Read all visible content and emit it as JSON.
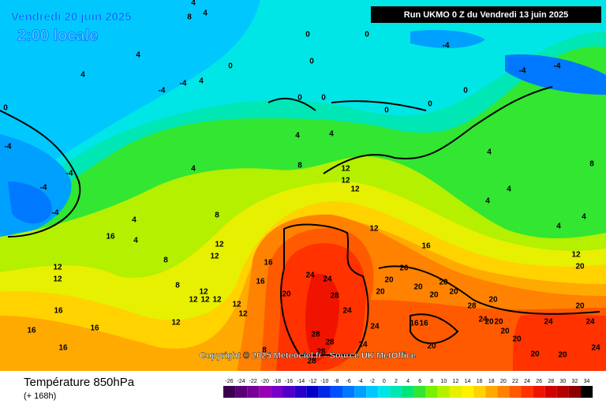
{
  "header": {
    "date": "Vendredi 20 juin 2025",
    "time": "2:00 locale",
    "run": "Run UKMO 0 Z du Vendredi 13 juin 2025"
  },
  "copyright": "Copyright © 2025 Meteociel.fr - Source UK MetOffice",
  "footer": {
    "title": "Température 850hPa",
    "subtitle": "(+ 168h)"
  },
  "legend": {
    "labels": [
      -26,
      -24,
      -22,
      -20,
      -18,
      -16,
      -14,
      -12,
      -10,
      -8,
      -6,
      -4,
      -2,
      0,
      2,
      4,
      6,
      8,
      10,
      12,
      14,
      16,
      18,
      20,
      22,
      24,
      26,
      28,
      30,
      32,
      34
    ],
    "colors": [
      "#3c0050",
      "#5a0078",
      "#780096",
      "#9600b4",
      "#7800c8",
      "#5000c8",
      "#2800c8",
      "#0000c8",
      "#0028e6",
      "#0050ff",
      "#0078ff",
      "#00a0ff",
      "#00c8ff",
      "#00e6e6",
      "#00e6b4",
      "#00e678",
      "#32e632",
      "#78f000",
      "#b4f000",
      "#e6f000",
      "#fff000",
      "#ffd200",
      "#ffaa00",
      "#ff8200",
      "#ff5a00",
      "#ff3200",
      "#f01400",
      "#d20000",
      "#b40000",
      "#8c0000",
      "#000000"
    ]
  },
  "contour_labels": [
    4,
    8,
    4,
    0,
    0,
    -4,
    0,
    0,
    -4,
    -4,
    0,
    0,
    0,
    0,
    0,
    4,
    4,
    -4,
    -4,
    4,
    0,
    -4,
    -4,
    -4,
    -4,
    4,
    8,
    4,
    4,
    4,
    4,
    4,
    4,
    4,
    8,
    12,
    12,
    12,
    12,
    16,
    8,
    4,
    4,
    8,
    12,
    12,
    16,
    12,
    12,
    8,
    12,
    12,
    12,
    12,
    12,
    12,
    12,
    16,
    16,
    16,
    16,
    16,
    24,
    24,
    28,
    20,
    24,
    20,
    20,
    20,
    20,
    20,
    20,
    20,
    24,
    16,
    16,
    20,
    28,
    28,
    24,
    28,
    28,
    28,
    20,
    20,
    20,
    20,
    24,
    20,
    20,
    24,
    24,
    20,
    20,
    24,
    20,
    12,
    8,
    16
  ]
}
